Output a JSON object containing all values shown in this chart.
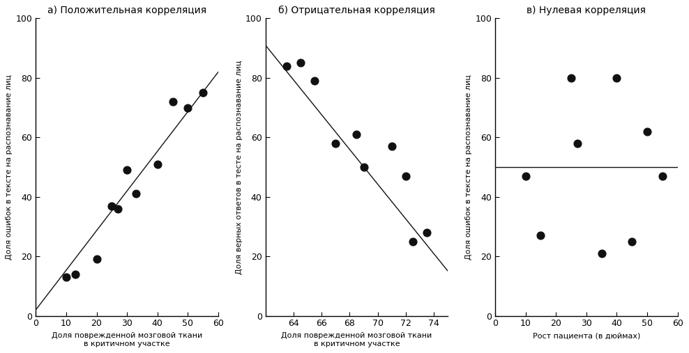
{
  "plot1": {
    "title": "а) Положительная корреляция",
    "xlabel": "Доля поврежденной мозговой ткани\nв критичном участке",
    "ylabel": "Доля ошибок в тексте на распознавание лиц",
    "xlim": [
      0,
      60
    ],
    "ylim": [
      0,
      100
    ],
    "xticks": [
      0,
      10,
      20,
      30,
      40,
      50,
      60
    ],
    "yticks": [
      0,
      20,
      40,
      60,
      80,
      100
    ],
    "scatter_x": [
      10,
      13,
      20,
      25,
      27,
      30,
      33,
      40,
      45,
      50,
      55
    ],
    "scatter_y": [
      13,
      14,
      19,
      37,
      36,
      49,
      41,
      51,
      72,
      70,
      75
    ],
    "line_x": [
      0,
      60
    ],
    "line_y": [
      2,
      82
    ]
  },
  "plot2": {
    "title": "б) Отрицательная корреляция",
    "xlabel": "Доля поврежденной мозговой ткани\nв критичном участке",
    "ylabel": "Доля верных ответов в тесте на распознавание лиц",
    "xlim": [
      62,
      75
    ],
    "ylim": [
      0,
      100
    ],
    "xticks": [
      64,
      66,
      68,
      70,
      72,
      74
    ],
    "yticks": [
      0,
      20,
      40,
      60,
      80,
      100
    ],
    "scatter_x": [
      63.5,
      64.5,
      65.5,
      67.0,
      68.5,
      69.0,
      71.0,
      72.0,
      72.5,
      73.5
    ],
    "scatter_y": [
      84,
      85,
      79,
      58,
      61,
      50,
      57,
      47,
      25,
      28
    ],
    "line_x": [
      62,
      75
    ],
    "line_y": [
      91,
      15
    ]
  },
  "plot3": {
    "title": "в) Нулевая корреляция",
    "xlabel": "Рост пациента (в дюймах)",
    "ylabel": "Доля ошибок в тексте на распознавание лиц",
    "xlim": [
      0,
      60
    ],
    "ylim": [
      0,
      100
    ],
    "xticks": [
      0,
      10,
      20,
      30,
      40,
      50,
      60
    ],
    "yticks": [
      0,
      20,
      40,
      60,
      80,
      100
    ],
    "scatter_x": [
      10,
      15,
      25,
      27,
      35,
      40,
      45,
      50,
      55
    ],
    "scatter_y": [
      47,
      27,
      80,
      58,
      21,
      80,
      25,
      62,
      47
    ],
    "line_y": 50
  },
  "dot_color": "#111111",
  "line_color": "#111111",
  "bg_color": "#ffffff",
  "title_fontsize": 10,
  "label_fontsize": 8,
  "tick_fontsize": 9,
  "dot_size": 60
}
